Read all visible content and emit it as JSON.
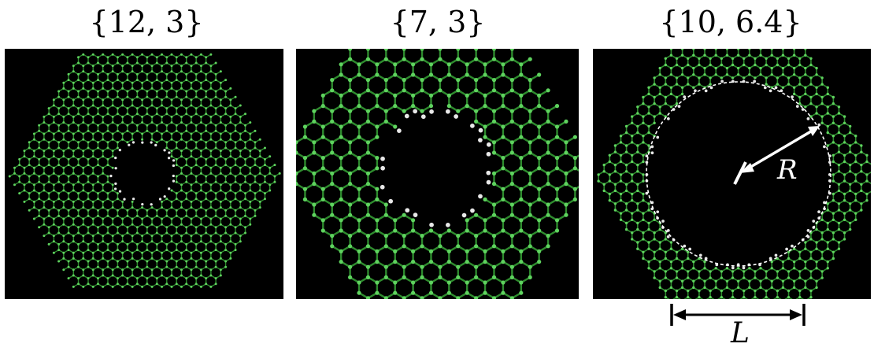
{
  "panels": [
    {
      "title": "{12, 3}",
      "hole": "small"
    },
    {
      "title": "{7, 3}",
      "hole": "medium"
    },
    {
      "title": "{10, 6.4}",
      "hole": "large"
    }
  ],
  "annotations": {
    "radius_label": "R",
    "length_label": "L"
  },
  "colors": {
    "background": "#000000",
    "bond": "#2e8b2e",
    "carbon_atom": "#5fd35f",
    "hydrogen_atom": "#e8e8e8",
    "annotation": "#ffffff"
  }
}
